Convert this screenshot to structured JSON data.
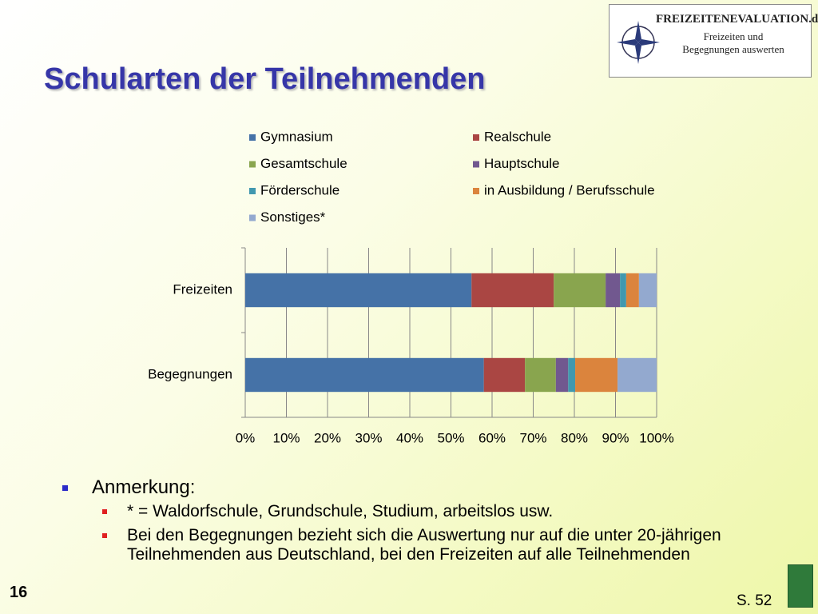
{
  "slide": {
    "title": "Schularten der Teilnehmenden",
    "logo": {
      "brand": "FREIZEITENEVALUATION.de",
      "line1": "Freizeiten und",
      "line2": "Begegnungen auswerten"
    },
    "notes": {
      "heading": "Anmerkung:",
      "items": [
        "* = Waldorfschule, Grundschule, Studium, arbeitslos usw.",
        "Bei den Begegnungen bezieht sich die Auswertung nur auf die unter 20-jährigen Teilnehmenden aus Deutschland, bei den Freizeiten auf alle Teilnehmenden"
      ]
    },
    "page_number": "16",
    "source": "S. 52"
  },
  "chart_data": {
    "type": "stacked_bar_horizontal",
    "categories": [
      "Freizeiten",
      "Begegnungen"
    ],
    "series": [
      {
        "name": "Gymnasium",
        "color": "#4572a7",
        "values": [
          55,
          58
        ]
      },
      {
        "name": "Realschule",
        "color": "#aa4643",
        "values": [
          20,
          10
        ]
      },
      {
        "name": "Gesamtschule",
        "color": "#89a54e",
        "values": [
          12.6,
          7.5
        ]
      },
      {
        "name": "Hauptschule",
        "color": "#71588f",
        "values": [
          3.5,
          3
        ]
      },
      {
        "name": "Förderschule",
        "color": "#4198af",
        "values": [
          1.5,
          1.7
        ]
      },
      {
        "name": "in Ausbildung / Berufsschule",
        "color": "#db843d",
        "values": [
          3.1,
          10.3
        ]
      },
      {
        "name": "Sonstiges*",
        "color": "#93a9cf",
        "values": [
          4.3,
          9.5
        ]
      }
    ],
    "xlim": [
      0,
      100
    ],
    "xticks": [
      {
        "value": 0,
        "label": "0%"
      },
      {
        "value": 10,
        "label": "10%"
      },
      {
        "value": 20,
        "label": "20%"
      },
      {
        "value": 30,
        "label": "30%"
      },
      {
        "value": 40,
        "label": "40%"
      },
      {
        "value": 50,
        "label": "50%"
      },
      {
        "value": 60,
        "label": "60%"
      },
      {
        "value": 70,
        "label": "70%"
      },
      {
        "value": 80,
        "label": "80%"
      },
      {
        "value": 90,
        "label": "90%"
      },
      {
        "value": 100,
        "label": "100%"
      }
    ],
    "grid": true,
    "legend": "top"
  }
}
